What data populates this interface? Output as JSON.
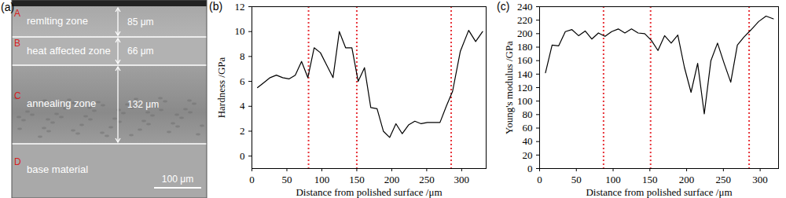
{
  "chart_data": [
    {
      "type": "line",
      "title": "(b)",
      "x_label": "Distance from polished surface /μm",
      "y_label": "Hardness /GPa",
      "x": [
        8,
        17,
        26,
        35,
        44,
        53,
        62,
        71,
        80,
        89,
        98,
        107,
        116,
        125,
        134,
        143,
        152,
        161,
        170,
        179,
        188,
        197,
        206,
        215,
        224,
        233,
        242,
        251,
        260,
        269,
        278,
        287,
        298,
        310,
        320,
        330
      ],
      "values": [
        5.5,
        5.9,
        6.3,
        6.5,
        6.3,
        6.2,
        6.5,
        7.6,
        6.3,
        8.7,
        8.3,
        7.3,
        6.3,
        10.0,
        8.7,
        8.7,
        6.0,
        7.1,
        3.9,
        3.8,
        2.0,
        1.5,
        2.6,
        1.8,
        2.5,
        2.8,
        2.6,
        2.7,
        2.7,
        2.7,
        4.0,
        5.2,
        8.4,
        10.1,
        9.2,
        10.0
      ],
      "color": "#000000",
      "vlines": [
        81,
        150,
        285
      ],
      "xlim": [
        0,
        335
      ],
      "xticks": [
        0,
        50,
        100,
        150,
        200,
        250,
        300
      ],
      "ylim": [
        -1,
        12
      ],
      "yticks": [
        0,
        2,
        4,
        6,
        8,
        10,
        12
      ]
    },
    {
      "type": "line",
      "title": "(c)",
      "x_label": "Distance from polished surface /μm",
      "y_label": "Young's modulus /GPa",
      "x": [
        8,
        17,
        26,
        35,
        44,
        53,
        62,
        71,
        80,
        89,
        98,
        107,
        116,
        125,
        134,
        143,
        152,
        161,
        170,
        179,
        188,
        197,
        206,
        215,
        224,
        233,
        242,
        251,
        260,
        269,
        278,
        287,
        298,
        308,
        318
      ],
      "values": [
        142,
        183,
        182,
        203,
        206,
        197,
        204,
        192,
        201,
        196,
        203,
        207,
        201,
        207,
        201,
        200,
        190,
        175,
        197,
        186,
        198,
        150,
        113,
        156,
        81,
        160,
        186,
        156,
        128,
        183,
        195,
        205,
        218,
        226,
        222
      ],
      "color": "#000000",
      "vlines": [
        87,
        151,
        285
      ],
      "xlim": [
        0,
        325
      ],
      "xticks": [
        0,
        50,
        100,
        150,
        200,
        250,
        300
      ],
      "ylim": [
        0,
        240
      ],
      "yticks": [
        0,
        20,
        40,
        60,
        80,
        100,
        120,
        140,
        160,
        180,
        200,
        220,
        240
      ]
    }
  ],
  "micrograph": {
    "label": "(a)",
    "zones": [
      {
        "letter": "A",
        "name": "remlting zone",
        "thickness": "85 μm"
      },
      {
        "letter": "B",
        "name": "heat affected zone",
        "thickness": "66 μm"
      },
      {
        "letter": "C",
        "name": "annealing zone",
        "thickness": "132 μm"
      },
      {
        "letter": "D",
        "name": "base material"
      }
    ],
    "scale_bar": "100 μm"
  }
}
